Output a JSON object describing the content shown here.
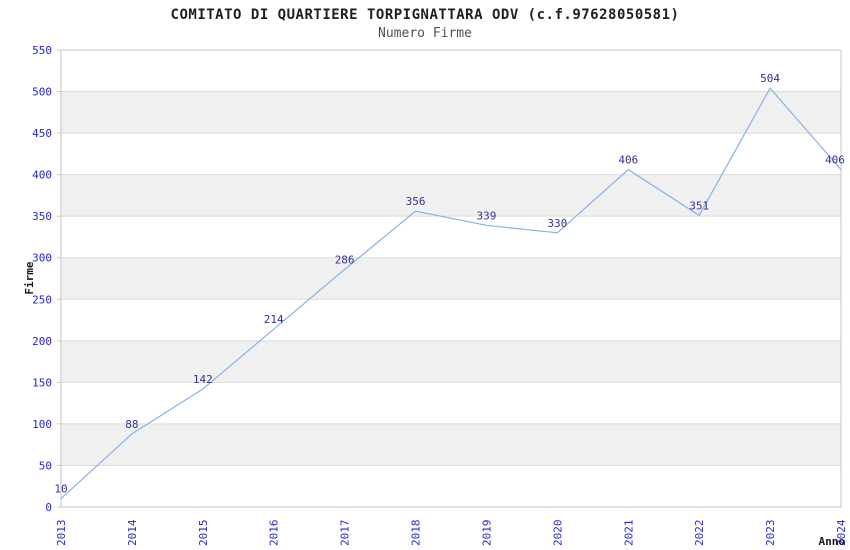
{
  "chart_data": {
    "type": "line",
    "title": "COMITATO DI QUARTIERE TORPIGNATTARA ODV (c.f.97628050581)",
    "subtitle": "Numero Firme",
    "xlabel": "Anno",
    "ylabel": "Firme",
    "x": [
      2013,
      2014,
      2015,
      2016,
      2017,
      2018,
      2019,
      2020,
      2021,
      2022,
      2023,
      2024
    ],
    "series": [
      {
        "name": "Numero Firme",
        "values": [
          10,
          88,
          142,
          214,
          286,
          356,
          339,
          330,
          406,
          351,
          504,
          406
        ]
      }
    ],
    "ylim": [
      0,
      550
    ],
    "ytick_step": 50,
    "grid": true,
    "legend_position": "none",
    "point_labels_visible": true,
    "colors": {
      "line": "#85b3e6",
      "tick_label": "#2626cf",
      "point_label": "#32328f",
      "band": "#f0f0f0",
      "gridline": "#dcdcdc",
      "plot_border": "#c6c6c6",
      "title": "#1f1f1f",
      "subtitle": "#515151",
      "axis_label": "#1a1a1a"
    }
  }
}
